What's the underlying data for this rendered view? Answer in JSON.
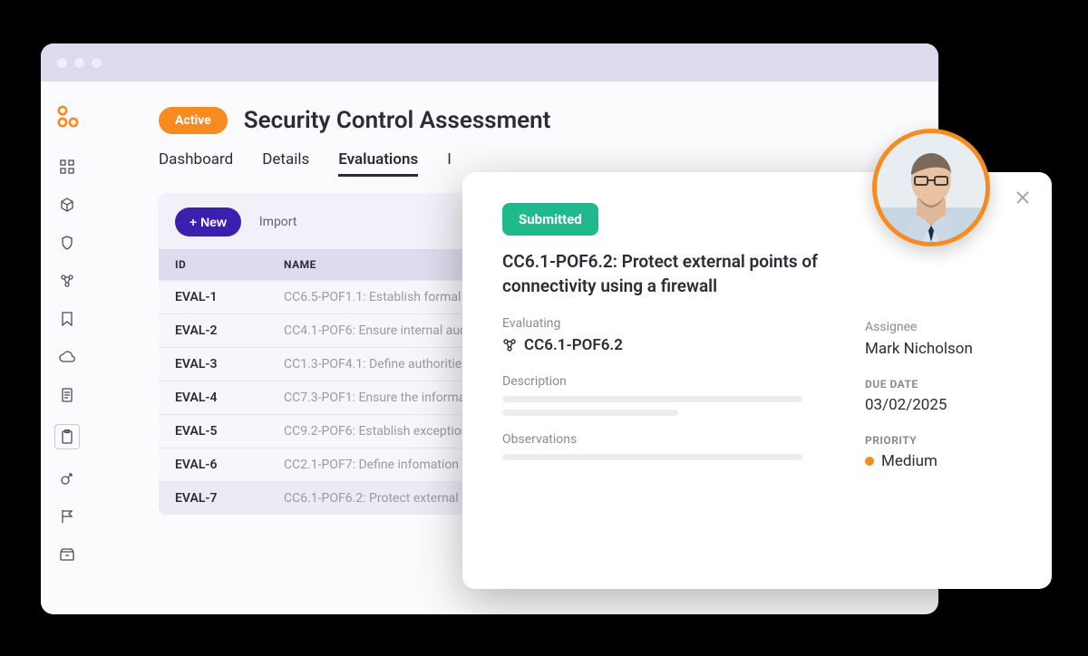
{
  "colors": {
    "accent_orange": "#f78b1f",
    "purple_btn": "#3c1fae",
    "green_pill": "#1fb98b",
    "title_bar": "#dcdbee",
    "table_header": "#dddcee"
  },
  "header": {
    "status_pill": "Active",
    "title": "Security Control Assessment"
  },
  "tabs": [
    "Dashboard",
    "Details",
    "Evaluations",
    "I"
  ],
  "active_tab_index": 2,
  "toolbar": {
    "new_label": "+ New",
    "import_label": "Import"
  },
  "table": {
    "columns": [
      "ID",
      "NAME"
    ],
    "rows": [
      {
        "id": "EVAL-1",
        "name": "CC6.5-POF1.1: Establish formal"
      },
      {
        "id": "EVAL-2",
        "name": "CC4.1-POF6: Ensure internal aud"
      },
      {
        "id": "EVAL-3",
        "name": "CC1.3-POF4.1: Define authoritie"
      },
      {
        "id": "EVAL-4",
        "name": "CC7.3-POF1: Ensure the informa"
      },
      {
        "id": "EVAL-5",
        "name": "CC9.2-POF6: Establish exception"
      },
      {
        "id": "EVAL-6",
        "name": "CC2.1-POF7: Define infomation"
      },
      {
        "id": "EVAL-7",
        "name": "CC6.1-POF6.2: Protect external",
        "highlight": true
      }
    ]
  },
  "card": {
    "status": "Submitted",
    "title": "CC6.1-POF6.2: Protect external points of connectivity using a firewall",
    "evaluating_label": "Evaluating",
    "evaluating_value": "CC6.1-POF6.2",
    "description_label": "Description",
    "observations_label": "Observations",
    "assignee_label": "Assignee",
    "assignee_value": "Mark Nicholson",
    "due_date_label": "DUE DATE",
    "due_date_value": "03/02/2025",
    "priority_label": "PRIORITY",
    "priority_value": "Medium"
  }
}
